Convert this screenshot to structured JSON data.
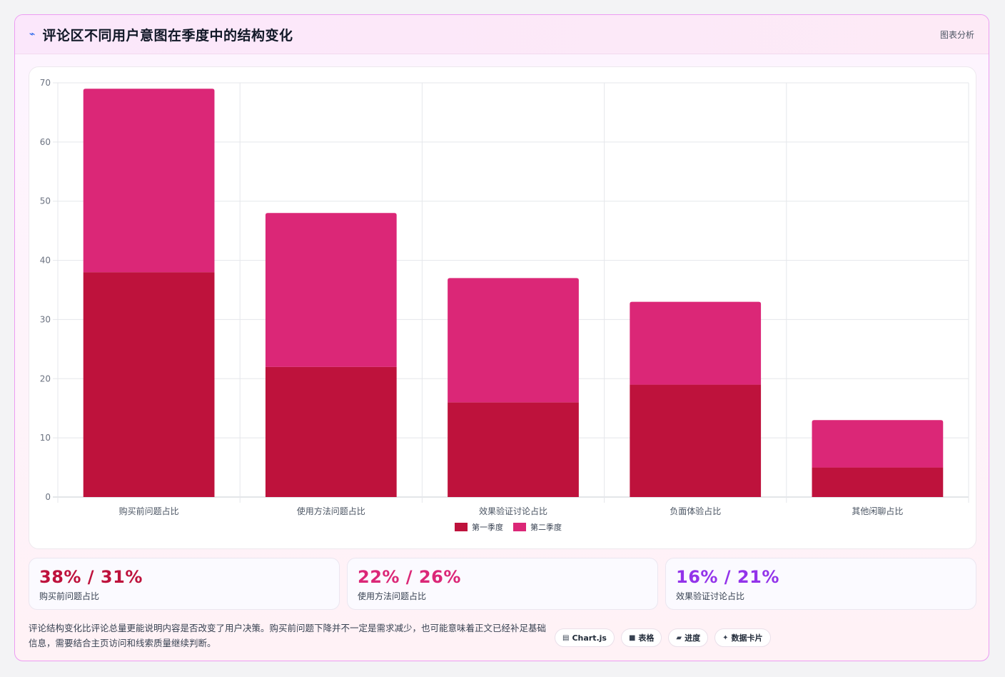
{
  "header": {
    "title": "评论区不同用户意图在季度中的结构变化",
    "tag": "图表分析",
    "icon": "trend-line-icon"
  },
  "chart_data": {
    "type": "bar",
    "stacked": true,
    "categories": [
      "购买前问题占比",
      "使用方法问题占比",
      "效果验证讨论占比",
      "负面体验占比",
      "其他闲聊占比"
    ],
    "series": [
      {
        "name": "第一季度",
        "values": [
          38,
          22,
          16,
          19,
          5
        ],
        "color": "#be123c"
      },
      {
        "name": "第二季度",
        "values": [
          31,
          26,
          21,
          14,
          8
        ],
        "color": "#db2777"
      }
    ],
    "ylim": [
      0,
      70
    ],
    "yticks": [
      0,
      10,
      20,
      30,
      40,
      50,
      60,
      70
    ],
    "grid": true,
    "legend": "bottom-center"
  },
  "stats": [
    {
      "value": "38% / 31%",
      "label": "购买前问题占比",
      "color": "#be123c"
    },
    {
      "value": "22% / 26%",
      "label": "使用方法问题占比",
      "color": "#db2777"
    },
    {
      "value": "16% / 21%",
      "label": "效果验证讨论占比",
      "color": "#9333ea"
    }
  ],
  "footer": {
    "text": "评论结构变化比评论总量更能说明内容是否改变了用户决策。购买前问题下降并不一定是需求减少，也可能意味着正文已经补足基础信息，需要结合主页访问和线索质量继续判断。",
    "pills": [
      {
        "icon": "chart-icon",
        "glyph": "▤",
        "label": "Chart.js"
      },
      {
        "icon": "table-icon",
        "glyph": "■",
        "label": "表格"
      },
      {
        "icon": "progress-icon",
        "glyph": "▰",
        "label": "进度"
      },
      {
        "icon": "sparkle-icon",
        "glyph": "✦",
        "label": "数据卡片"
      }
    ]
  }
}
